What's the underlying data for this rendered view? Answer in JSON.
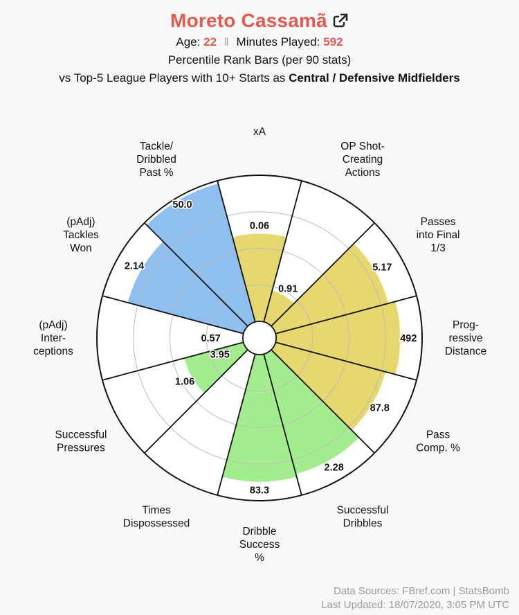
{
  "header": {
    "player_name": "Moreto Cassamã",
    "age_label": "Age:",
    "age": "22",
    "separator": "‖",
    "minutes_label": "Minutes Played:",
    "minutes": "592",
    "subtitle": "Percentile Rank Bars (per 90 stats)",
    "comparison_prefix": "vs Top-5 League Players with 10+ Starts as",
    "position_group": "Central / Defensive Midfielders",
    "link_icon": "external-link-icon"
  },
  "footer": {
    "sources": "Data Sources: FBref.com | StatsBomb",
    "updated": "Last Updated: 18/07/2020, 3:05 PM UTC"
  },
  "colors": {
    "title": "#e05a4e",
    "defending": "#8fbfee",
    "passing": "#e6d86e",
    "possession": "#a4ed8e",
    "empty": "#ffffff",
    "grid": "#bbbbbb",
    "spoke": "#111111"
  },
  "chart_data": {
    "type": "polar-bar",
    "title": "Percentile Rank Bars (per 90 stats)",
    "rlim": [
      0,
      100
    ],
    "gridlines": [
      25,
      50,
      75,
      100
    ],
    "categories": [
      {
        "label": [
          "xA"
        ],
        "value_label": "0.06",
        "percentile": 60,
        "group": "passing"
      },
      {
        "label": [
          "OP Shot-",
          "Creating",
          "Actions"
        ],
        "value_label": "0.91",
        "percentile": 22,
        "group": "passing"
      },
      {
        "label": [
          "Passes",
          "into Final",
          "1/3"
        ],
        "value_label": "5.17",
        "percentile": 80,
        "group": "passing"
      },
      {
        "label": [
          "Prog-",
          "ressive",
          "Distance"
        ],
        "value_label": "492",
        "percentile": 85,
        "group": "passing"
      },
      {
        "label": [
          "Pass",
          "Comp. %"
        ],
        "value_label": "87.8",
        "percentile": 78,
        "group": "passing"
      },
      {
        "label": [
          "Successful",
          "Dribbles"
        ],
        "value_label": "2.28",
        "percentile": 85,
        "group": "possession"
      },
      {
        "label": [
          "Dribble",
          "Success",
          "%"
        ],
        "value_label": "83.3",
        "percentile": 87,
        "group": "possession"
      },
      {
        "label": [
          "Times",
          "Dispossessed"
        ],
        "value_label": "",
        "percentile": 0,
        "group": "possession"
      },
      {
        "label": [
          "Successful",
          "Pressures"
        ],
        "value_label": "1.06",
        "percentile": 42,
        "group": "possession"
      },
      {
        "label": [
          "(pAdj)",
          "Inter-",
          "ceptions"
        ],
        "value_label": "0.57",
        "percentile": 0,
        "group": "defending"
      },
      {
        "label": [
          "(pAdj)",
          "Tackles",
          "Won"
        ],
        "value_label": "2.14",
        "percentile": 82,
        "group": "defending"
      },
      {
        "label": [
          "Tackle/",
          "Dribbled",
          "Past %"
        ],
        "value_label": "50.0",
        "percentile": 98,
        "group": "defending"
      }
    ],
    "extra_value_labels": [
      {
        "value_label": "3.95",
        "category_index": 9
      }
    ]
  }
}
